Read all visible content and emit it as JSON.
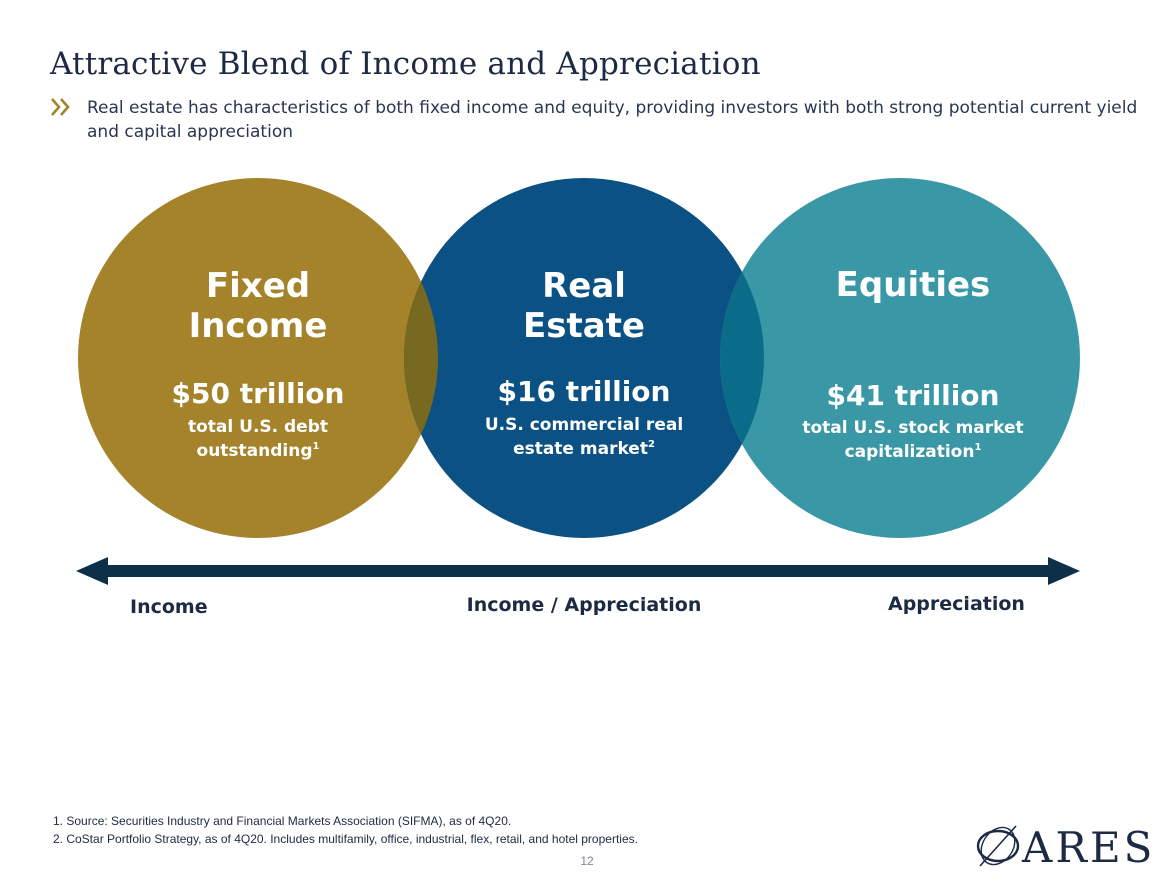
{
  "header": {
    "title": "Attractive Blend of Income and Appreciation",
    "bullet_icon": "double-chevron-right-icon",
    "bullet_text": "Real estate has characteristics of both fixed income and equity, providing investors with both strong potential current yield and capital appreciation"
  },
  "circles": [
    {
      "title_line1": "Fixed",
      "title_line2": "Income",
      "value": "$50 trillion",
      "desc_line1": "total U.S. debt",
      "desc_line2": "outstanding",
      "footnote_ref": "1",
      "color": "#a5832b"
    },
    {
      "title_line1": "Real",
      "title_line2": "Estate",
      "value": "$16 trillion",
      "desc_line1": "U.S. commercial real",
      "desc_line2": "estate market",
      "footnote_ref": "2",
      "color": "#0b5183"
    },
    {
      "title_line1": "Equities",
      "title_line2": "",
      "value": "$41 trillion",
      "desc_line1": "total U.S. stock market",
      "desc_line2": "capitalization",
      "footnote_ref": "1",
      "color": "#3a98a6"
    }
  ],
  "overlap_colors": [
    "#786920",
    "#0b6c8a"
  ],
  "arrow": {
    "color": "#0e2f48",
    "labels": [
      "Income",
      "Income / Appreciation",
      "Appreciation"
    ]
  },
  "footnotes": [
    "1. Source:  Securities Industry and Financial Markets Association (SIFMA), as of 4Q20.",
    "2. CoStar Portfolio Strategy, as of 4Q20. Includes multifamily, office, industrial, flex, retail, and hotel properties."
  ],
  "page_number": "12",
  "logo": {
    "text": "ARES",
    "icon": "ares-logo-icon"
  }
}
